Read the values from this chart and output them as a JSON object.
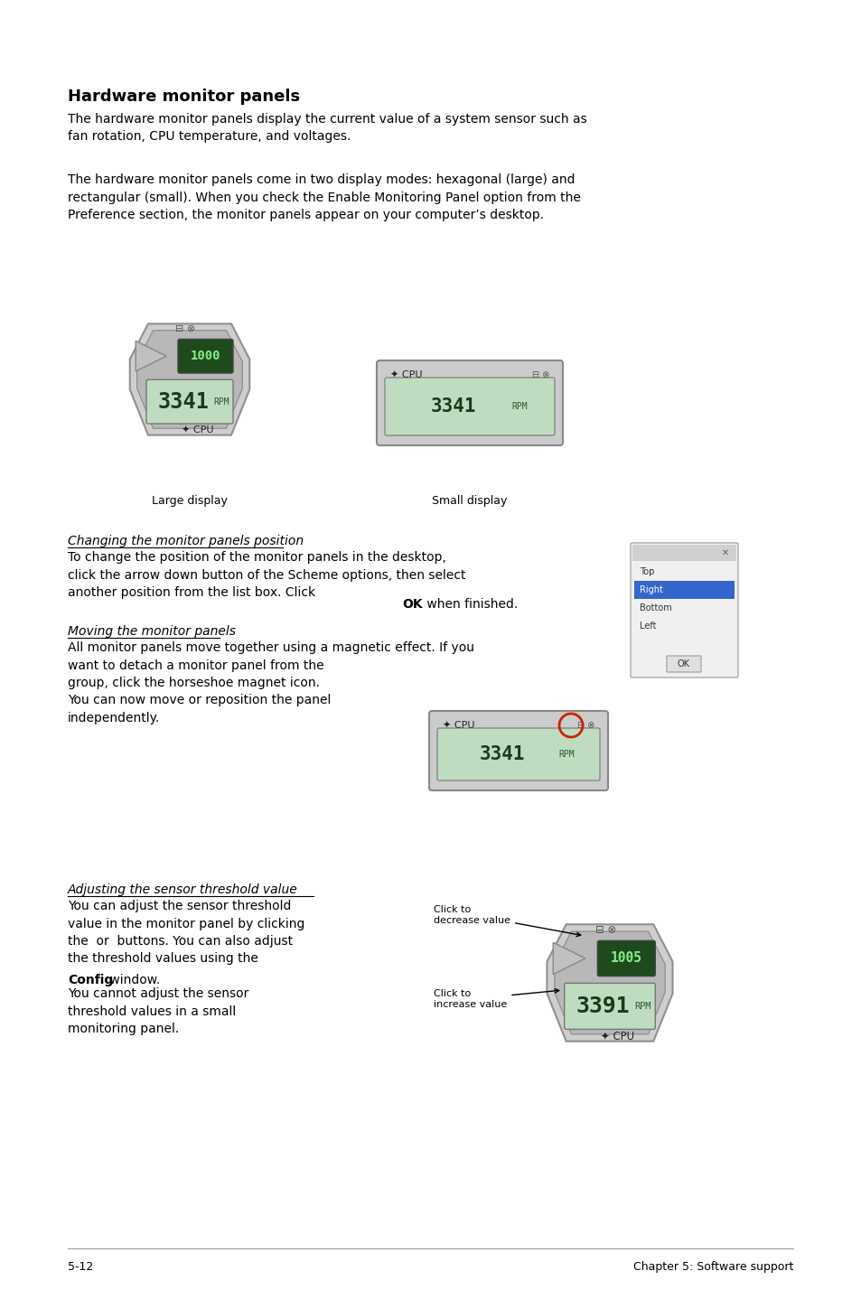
{
  "page_bg": "#ffffff",
  "title": "Hardware monitor panels",
  "para1": "The hardware monitor panels display the current value of a system sensor such as\nfan rotation, CPU temperature, and voltages.",
  "para2": "The hardware monitor panels come in two display modes: hexagonal (large) and\nrectangular (small). When you check the Enable Monitoring Panel option from the\nPreference section, the monitor panels appear on your computer’s desktop.",
  "label_large": "Large display",
  "label_small": "Small display",
  "section1_title": "Changing the monitor panels position",
  "section1_text": "To change the position of the monitor panels in the desktop,\nclick the arrow down button of the Scheme options, then select\nanother position from the list box. Click ",
  "section1_bold": "OK",
  "section1_text2": " when finished.",
  "section2_title": "Moving the monitor panels",
  "section2_text": "All monitor panels move together using a magnetic effect. If you\nwant to detach a monitor panel from the\ngroup, click the horseshoe magnet icon.\nYou can now move or reposition the panel\nindependently.",
  "section3_title": "Adjusting the sensor threshold value",
  "section3_text1": "You can adjust the sensor threshold\nvalue in the monitor panel by clicking\nthe  or  buttons. You can also adjust\nthe threshold values using the",
  "section3_bold": "Config",
  "section3_text2": " window.",
  "section3_text3": "You cannot adjust the sensor\nthreshold values in a small\nmonitoring panel.",
  "annot1": "Click to\nincrease value",
  "annot2": "Click to\ndecrease value",
  "footer_left": "5-12",
  "footer_right": "Chapter 5: Software support",
  "text_color": "#000000",
  "font_size_title": 13,
  "font_size_body": 10,
  "font_size_small": 9,
  "font_size_footer": 9
}
